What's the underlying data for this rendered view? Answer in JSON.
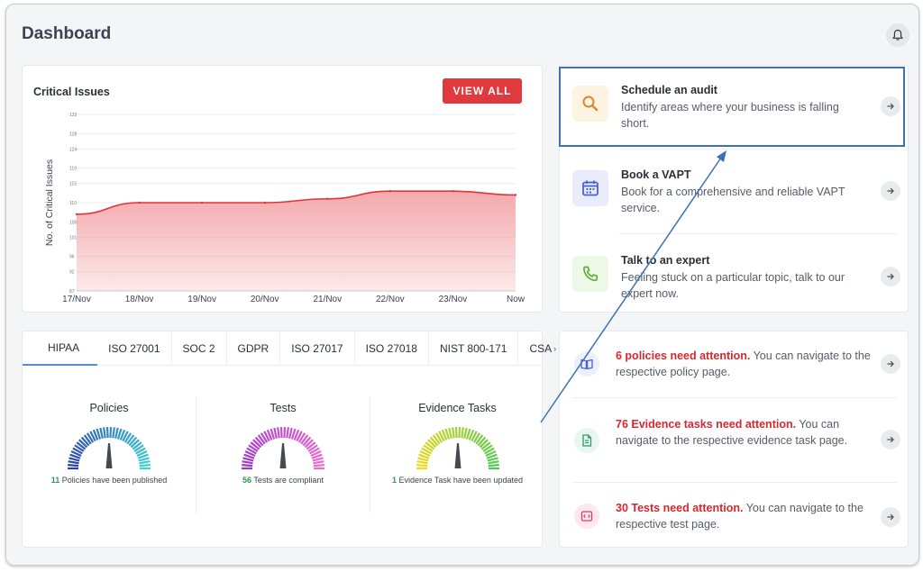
{
  "page": {
    "title": "Dashboard"
  },
  "critical_issues": {
    "title": "Critical Issues",
    "view_all_label": "VIEW ALL"
  },
  "chart_data": {
    "type": "area",
    "title": "Critical Issues",
    "ylabel": "No. of Critical Issues",
    "xlabel": "",
    "categories": [
      "17/Nov",
      "18/Nov",
      "19/Nov",
      "20/Nov",
      "21/Nov",
      "22/Nov",
      "23/Nov",
      "Now"
    ],
    "values": [
      107,
      110,
      110,
      110,
      111,
      113,
      113,
      112
    ],
    "y_ticks": [
      87,
      92,
      96,
      101,
      105,
      110,
      115,
      119,
      124,
      128,
      133
    ],
    "ylim": [
      87,
      133
    ],
    "grid": true,
    "color": "#e0343c",
    "fill_color": "#f3a5a8"
  },
  "compliance": {
    "tabs": [
      "HIPAA",
      "ISO 27001",
      "SOC 2",
      "GDPR",
      "ISO 27017",
      "ISO 27018",
      "NIST 800-171",
      "CSA"
    ],
    "active_tab": "HIPAA",
    "gauges": [
      {
        "title": "Policies",
        "count": "11",
        "caption": " Policies have been published",
        "colors": [
          "#2c3fa8",
          "#3fd3d3"
        ]
      },
      {
        "title": "Tests",
        "count": "56",
        "caption": " Tests are compliant",
        "colors": [
          "#9a38c8",
          "#f06dd0"
        ]
      },
      {
        "title": "Evidence Tasks",
        "count": "1",
        "caption": " Evidence Task have been updated",
        "colors": [
          "#f0d81c",
          "#4fc95a"
        ]
      }
    ]
  },
  "actions": [
    {
      "title": "Schedule an audit",
      "desc": "Identify areas where your business is falling short.",
      "icon": "magnifier-icon"
    },
    {
      "title": "Book a VAPT",
      "desc": "Book for a comprehensive and reliable VAPT service.",
      "icon": "calendar-icon"
    },
    {
      "title": "Talk to an expert",
      "desc": "Feeling stuck on a particular topic, talk to our expert now.",
      "icon": "phone-icon"
    }
  ],
  "alerts": [
    {
      "strong": "6 policies need attention.",
      "rest": " You can navigate to the respective policy page.",
      "icon": "book-icon"
    },
    {
      "strong": "76 Evidence tasks need attention.",
      "rest": " You can navigate to the respective evidence task page.",
      "icon": "document-icon"
    },
    {
      "strong": "30 Tests need attention.",
      "rest": " You can navigate to the respective test page.",
      "icon": "code-window-icon"
    }
  ]
}
